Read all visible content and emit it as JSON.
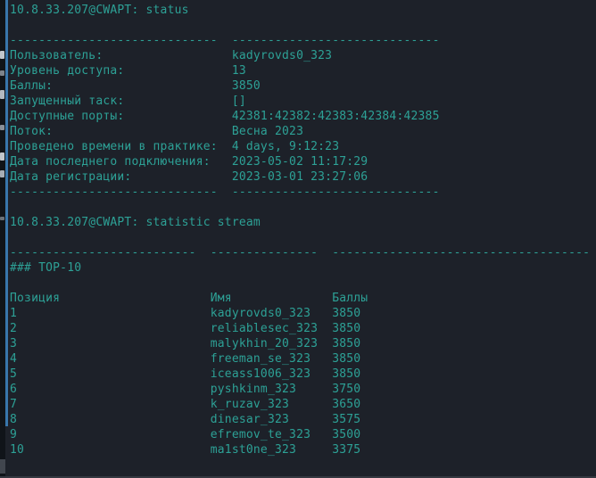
{
  "terminal": {
    "status_command": {
      "command_label": "10.8.33.207@CWAPT: status",
      "rows": [
        {
          "label": "Пользователь:",
          "value": "kadyrovds0_323"
        },
        {
          "label": "Уровень доступа:",
          "value": "13"
        },
        {
          "label": "Баллы:",
          "value": "3850"
        },
        {
          "label": "Запущенный таск:",
          "value": "[]"
        },
        {
          "label": "Доступные порты:",
          "value": "42381:42382:42383:42384:42385"
        },
        {
          "label": "Поток:",
          "value": "Весна 2023"
        },
        {
          "label": "Проведено времени в практике:",
          "value": "4 days, 9:12:23"
        },
        {
          "label": "Дата последнего подключения:",
          "value": "2023-05-02 11:17:29"
        },
        {
          "label": "Дата регистрации:",
          "value": "2023-03-01 23:27:06"
        }
      ]
    },
    "stream_command": {
      "command_label": "10.8.33.207@CWAPT: statistic stream",
      "section_title": "### TOP-10",
      "table": {
        "headers": [
          "Позиция",
          "Имя",
          "Баллы"
        ],
        "rows": [
          [
            "1",
            "kadyrovds0_323",
            "3850"
          ],
          [
            "2",
            "reliablesec_323",
            "3850"
          ],
          [
            "3",
            "malykhin_20_323",
            "3850"
          ],
          [
            "4",
            "freeman_se_323",
            "3850"
          ],
          [
            "5",
            "iceass1006_323",
            "3850"
          ],
          [
            "6",
            "pyshkinm_323",
            "3750"
          ],
          [
            "7",
            "k_ruzav_323",
            "3650"
          ],
          [
            "8",
            "dinesar_323",
            "3575"
          ],
          [
            "9",
            "efremov_te_323",
            "3500"
          ],
          [
            "10",
            "ma1st0ne_323",
            "3375"
          ]
        ]
      }
    },
    "colors": {
      "background": "#1d2129",
      "text": "#2da196",
      "divider_blue": "#3876ac",
      "left_strip": "#101419"
    }
  }
}
